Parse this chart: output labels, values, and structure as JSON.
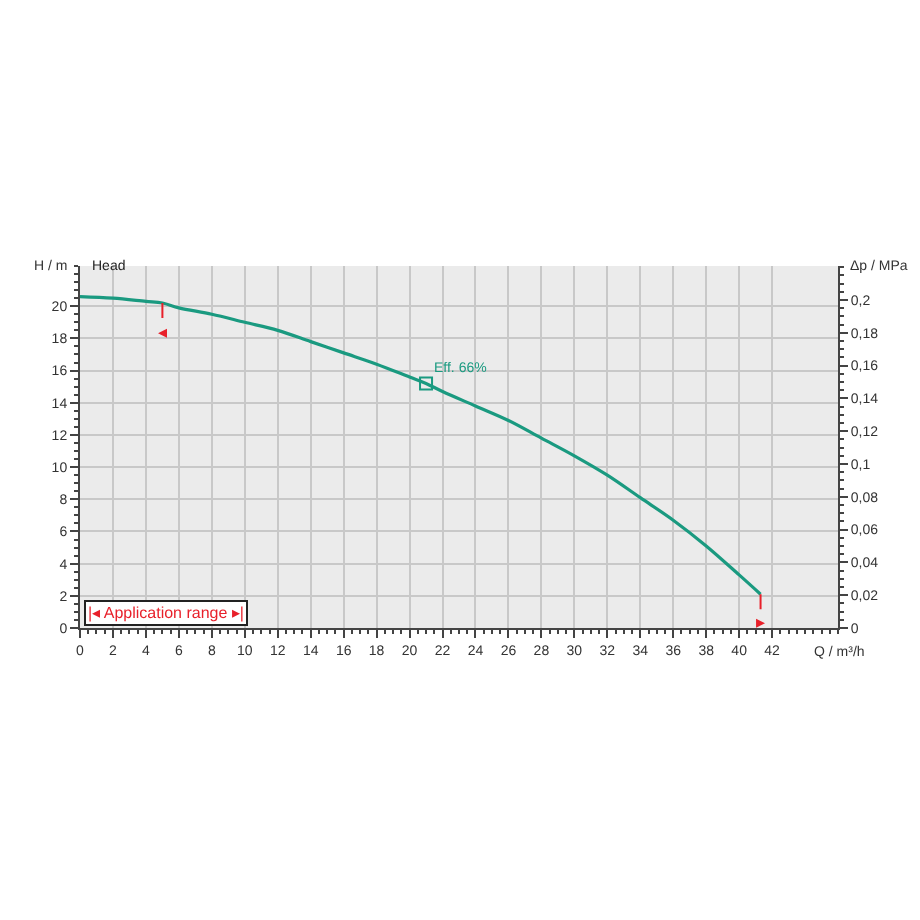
{
  "chart_data": {
    "type": "line",
    "xlabel": "Q / m³/h",
    "ylabel": "H / m",
    "y2label": "Δp / MPa",
    "x": [
      0,
      2,
      4,
      5,
      6,
      8,
      10,
      12,
      14,
      16,
      18,
      20,
      21,
      22,
      24,
      26,
      28,
      30,
      32,
      34,
      36,
      38,
      40,
      41.3
    ],
    "series": [
      {
        "color": "#1a9a80",
        "values": [
          20.6,
          20.5,
          20.3,
          20.2,
          19.9,
          19.5,
          19.0,
          18.5,
          17.8,
          17.1,
          16.4,
          15.6,
          15.2,
          14.7,
          13.8,
          12.9,
          11.8,
          10.7,
          9.5,
          8.1,
          6.7,
          5.1,
          3.3,
          2.1
        ]
      }
    ],
    "xlim": [
      0,
      46
    ],
    "xticks": [
      0,
      2,
      4,
      6,
      8,
      10,
      12,
      14,
      16,
      18,
      20,
      22,
      24,
      26,
      28,
      30,
      32,
      34,
      36,
      38,
      40,
      42
    ],
    "ylim": [
      0,
      22.5
    ],
    "yticks": [
      0,
      2,
      4,
      6,
      8,
      10,
      12,
      14,
      16,
      18,
      20
    ],
    "y2lim": [
      0,
      0.2207
    ],
    "y2ticks": [
      {
        "value": 0,
        "label": "0"
      },
      {
        "value": 0.02,
        "label": "0,02"
      },
      {
        "value": 0.04,
        "label": "0,04"
      },
      {
        "value": 0.06,
        "label": "0,06"
      },
      {
        "value": 0.08,
        "label": "0,08"
      },
      {
        "value": 0.1,
        "label": "0,1"
      },
      {
        "value": 0.12,
        "label": "0,12"
      },
      {
        "value": 0.14,
        "label": "0,14"
      },
      {
        "value": 0.16,
        "label": "0,16"
      },
      {
        "value": 0.18,
        "label": "0,18"
      },
      {
        "value": 0.2,
        "label": "0,2"
      }
    ],
    "annotations": [
      "Head",
      {
        "text": "Eff. 66%",
        "x": 21,
        "y": 15.2
      },
      "|◂ Application range ▸|",
      {
        "text": "◂",
        "x": 5,
        "y": 20.2
      },
      {
        "text": "▸",
        "x": 41.3,
        "y": 2.1
      }
    ],
    "grid": true,
    "marker": "none",
    "line_style": "solid"
  }
}
